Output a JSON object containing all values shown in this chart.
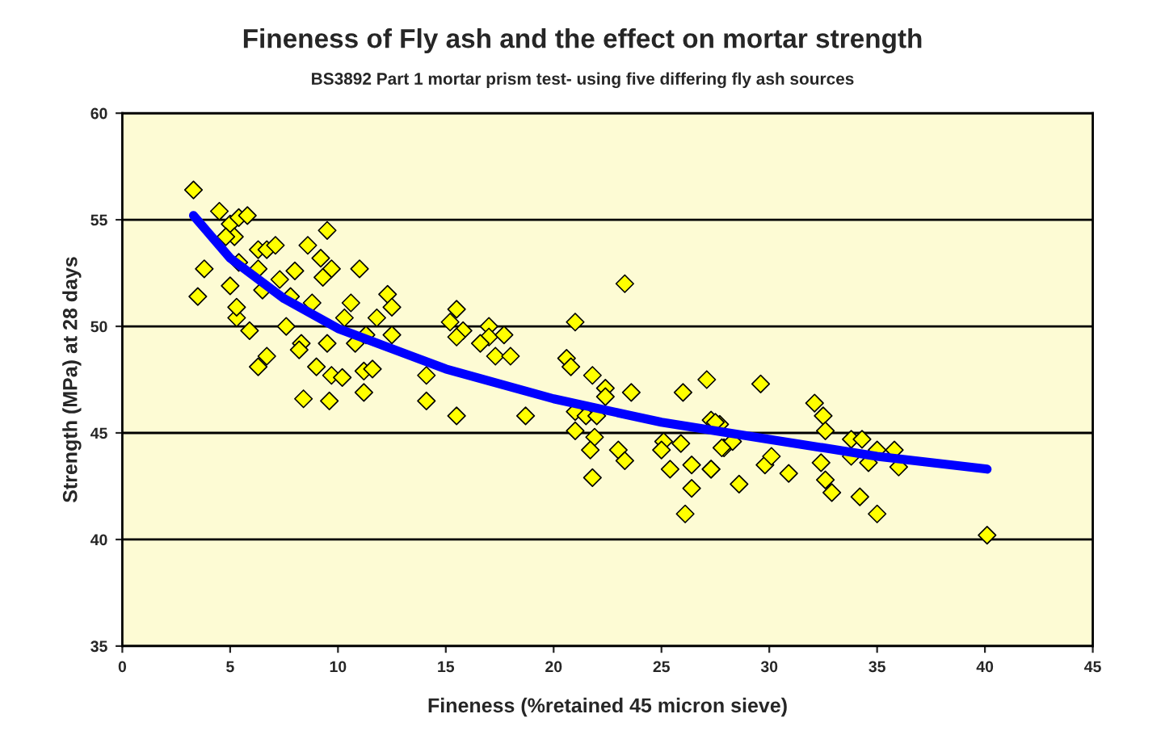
{
  "chart_data": {
    "type": "scatter",
    "title": "Fineness of Fly ash and the effect on mortar strength",
    "subtitle": "BS3892 Part 1 mortar prism test- using five differing fly ash sources",
    "xlabel": "Fineness (%retained 45 micron sieve)",
    "ylabel": "Strength (MPa) at 28 days",
    "xlim": [
      0,
      45
    ],
    "xticks": [
      0,
      5,
      10,
      15,
      20,
      25,
      30,
      35,
      40,
      45
    ],
    "ylim": [
      35,
      60
    ],
    "yticks": [
      35,
      40,
      45,
      50,
      55,
      60
    ],
    "grid": "y",
    "legend": false,
    "series": [
      {
        "color": "#ffff00",
        "marker": "diamond",
        "x": [
          3.3,
          4.5,
          5.0,
          5.4,
          5.8,
          5.2,
          3.8,
          3.5,
          6.3,
          6.7,
          7.1,
          8.6,
          9.5,
          9.2,
          9.7,
          11.0,
          8.0,
          9.3,
          12.3,
          12.5,
          5.3,
          5.9,
          7.6,
          8.3,
          8.2,
          9.5,
          10.8,
          11.3,
          12.5,
          6.3,
          6.7,
          9.0,
          9.7,
          10.2,
          11.2,
          11.6,
          11.2,
          8.4,
          9.6,
          14.1,
          14.1,
          15.2,
          5.0,
          5.3,
          6.5,
          7.3,
          7.8,
          8.8,
          10.3,
          10.6,
          11.8,
          5.4,
          6.3,
          4.8,
          23.3,
          15.5,
          15.8,
          15.5,
          17.0,
          17.0,
          17.7,
          16.6,
          21.0,
          17.3,
          18.0,
          20.6,
          20.8,
          15.5,
          18.7,
          21.8,
          22.4,
          22.4,
          23.6,
          26.0,
          27.1,
          21.0,
          21.5,
          22.0,
          21.0,
          21.9,
          21.7,
          23.0,
          23.3,
          21.8,
          25.1,
          25.0,
          25.9,
          27.3,
          27.7,
          27.9,
          28.3,
          25.4,
          26.4,
          27.3,
          26.4,
          28.6,
          26.1,
          29.6,
          32.1,
          32.5,
          32.6,
          27.5,
          33.8,
          34.3,
          27.8,
          29.8,
          30.1,
          30.9,
          32.4,
          32.6,
          32.9,
          33.8,
          34.6,
          35.0,
          35.8,
          36.0,
          34.2,
          35.0,
          27.3,
          40.1
        ],
        "values": [
          56.4,
          55.4,
          54.8,
          55.1,
          55.2,
          54.2,
          52.7,
          51.4,
          53.6,
          53.6,
          53.8,
          53.8,
          54.5,
          53.2,
          52.7,
          52.7,
          52.6,
          52.3,
          51.5,
          50.9,
          50.4,
          49.8,
          50.0,
          49.2,
          48.9,
          49.2,
          49.2,
          49.6,
          49.6,
          48.1,
          48.6,
          48.1,
          47.7,
          47.6,
          47.9,
          48.0,
          46.9,
          46.6,
          46.5,
          46.5,
          47.7,
          50.2,
          51.9,
          50.9,
          51.7,
          52.2,
          51.4,
          51.1,
          50.4,
          51.1,
          50.4,
          53.0,
          52.7,
          54.2,
          52.0,
          50.8,
          49.8,
          49.5,
          50.0,
          49.5,
          49.6,
          49.2,
          50.2,
          48.6,
          48.6,
          48.5,
          48.1,
          45.8,
          45.8,
          47.7,
          47.1,
          46.7,
          46.9,
          46.9,
          47.5,
          46.0,
          45.8,
          45.8,
          45.1,
          44.8,
          44.2,
          44.2,
          43.7,
          42.9,
          44.6,
          44.2,
          44.5,
          45.6,
          45.4,
          44.3,
          44.6,
          43.3,
          43.5,
          43.3,
          42.4,
          42.6,
          41.2,
          47.3,
          46.4,
          45.8,
          45.1,
          45.5,
          44.7,
          44.7,
          44.3,
          43.5,
          43.9,
          43.1,
          43.6,
          42.8,
          42.2,
          43.9,
          43.6,
          44.2,
          44.2,
          43.4,
          42.0,
          41.2,
          43.3,
          40.2
        ]
      },
      {
        "type": "line",
        "color": "#0000ff",
        "marker": "none",
        "x": [
          3.3,
          5,
          7.5,
          10,
          15,
          20,
          25,
          30,
          35,
          40.1
        ],
        "values": [
          55.2,
          53.2,
          51.3,
          49.9,
          48.0,
          46.6,
          45.5,
          44.7,
          43.9,
          43.3
        ]
      }
    ]
  }
}
